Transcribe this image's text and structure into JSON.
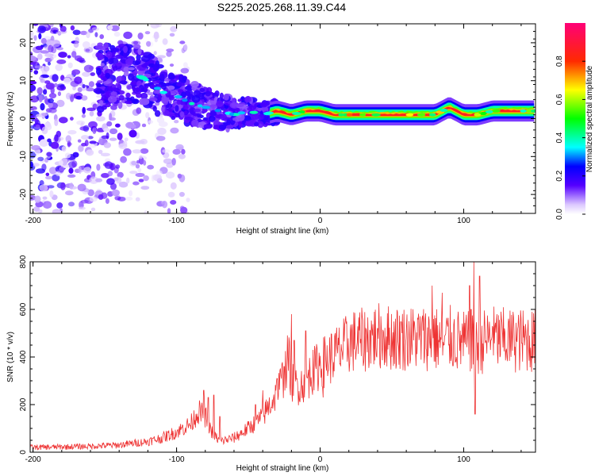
{
  "title": "S225.2025.268.11.39.C44",
  "chart_data": [
    {
      "type": "heatmap",
      "xlabel": "Height of straight line (km)",
      "ylabel": "Frequency (Hz)",
      "xlim": [
        -202,
        150
      ],
      "ylim": [
        -25,
        25
      ],
      "xticks": [
        -200,
        -100,
        0,
        100
      ],
      "xtick_labels": [
        "-200",
        "-100",
        "0",
        "100"
      ],
      "yticks": [
        -20,
        -10,
        0,
        10,
        20
      ],
      "ytick_labels": [
        "-20",
        "-10",
        "0",
        "10",
        "20"
      ],
      "ridge": [
        [
          -150,
          11
        ],
        [
          -140,
          11
        ],
        [
          -130,
          12
        ],
        [
          -120,
          10
        ],
        [
          -110,
          7
        ],
        [
          -100,
          6
        ],
        [
          -90,
          4
        ],
        [
          -80,
          3
        ],
        [
          -70,
          2
        ],
        [
          -60,
          1
        ],
        [
          -50,
          2
        ],
        [
          -40,
          1
        ],
        [
          -30,
          2
        ],
        [
          -20,
          1
        ],
        [
          -10,
          2
        ],
        [
          0,
          2
        ],
        [
          10,
          1
        ],
        [
          20,
          1
        ],
        [
          40,
          1
        ],
        [
          50,
          1
        ],
        [
          60,
          1
        ],
        [
          70,
          1
        ],
        [
          80,
          1
        ],
        [
          90,
          3
        ],
        [
          100,
          1
        ],
        [
          110,
          1
        ],
        [
          120,
          2
        ],
        [
          150,
          2
        ]
      ],
      "colorbar": {
        "label": "Normalized spectral amplitude",
        "range": [
          0,
          1
        ],
        "ticks": [
          0.0,
          0.2,
          0.4,
          0.6,
          0.8
        ],
        "tick_labels": [
          "0.0",
          "0.2",
          "0.4",
          "0.6",
          "0.8"
        ]
      }
    },
    {
      "type": "line",
      "xlabel": "Height of straight line (km)",
      "ylabel": "SNR (10 * v/v)",
      "xlim": [
        -202,
        150
      ],
      "ylim": [
        0,
        800
      ],
      "xticks": [
        -200,
        -100,
        0,
        100
      ],
      "xtick_labels": [
        "-200",
        "-100",
        "0",
        "100"
      ],
      "yticks": [
        0,
        200,
        400,
        600,
        800
      ],
      "ytick_labels": [
        "0",
        "200",
        "400",
        "600",
        "800"
      ],
      "series": [
        {
          "name": "SNR",
          "color": "#ee3333",
          "x": [
            -202,
            -180,
            -160,
            -140,
            -120,
            -110,
            -100,
            -90,
            -85,
            -80,
            -75,
            -70,
            -60,
            -50,
            -40,
            -35,
            -30,
            -25,
            -22,
            -20,
            -15,
            -10,
            -5,
            0,
            5,
            10,
            15,
            20,
            25,
            30,
            40,
            50,
            60,
            70,
            80,
            85,
            90,
            95,
            100,
            105,
            108,
            110,
            115,
            120,
            130,
            140,
            150
          ],
          "y": [
            20,
            22,
            25,
            30,
            45,
            60,
            85,
            120,
            170,
            150,
            80,
            45,
            60,
            100,
            150,
            200,
            250,
            330,
            400,
            300,
            280,
            300,
            340,
            370,
            390,
            410,
            430,
            460,
            470,
            470,
            490,
            480,
            480,
            480,
            480,
            460,
            480,
            470,
            460,
            460,
            420,
            450,
            470,
            480,
            470,
            470,
            470
          ]
        }
      ],
      "spikes": [
        [
          -81,
          260
        ],
        [
          -78,
          230
        ],
        [
          -74,
          240
        ],
        [
          -70,
          150
        ],
        [
          -45,
          200
        ],
        [
          -40,
          260
        ],
        [
          -30,
          310
        ],
        [
          -25,
          360
        ],
        [
          -20,
          580
        ],
        [
          -18,
          470
        ],
        [
          -10,
          510
        ],
        [
          -5,
          430
        ],
        [
          2,
          230
        ],
        [
          40,
          520
        ],
        [
          57,
          500
        ],
        [
          78,
          700
        ],
        [
          79,
          560
        ],
        [
          85,
          670
        ],
        [
          86,
          450
        ],
        [
          104,
          700
        ],
        [
          105,
          600
        ],
        [
          107,
          800
        ],
        [
          108,
          160
        ],
        [
          111,
          740
        ],
        [
          114,
          480
        ],
        [
          120,
          530
        ],
        [
          135,
          520
        ]
      ]
    }
  ]
}
